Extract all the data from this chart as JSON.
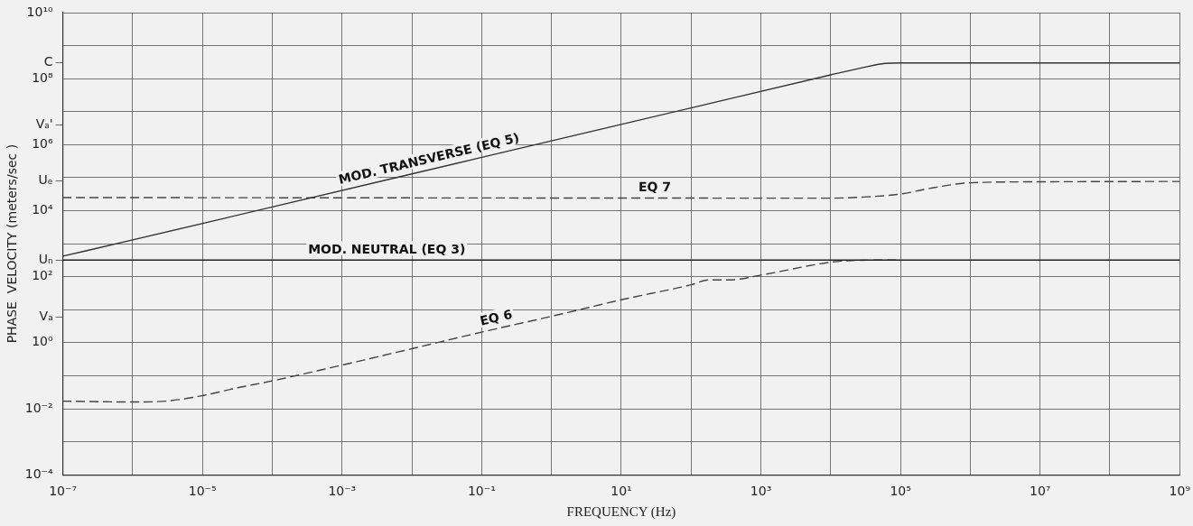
{
  "chart_data": {
    "type": "line",
    "xlabel": "FREQUENCY (Hz)",
    "ylabel": "PHASE  VELOCITY (meters/sec )",
    "log": "xy",
    "grid": true,
    "legend": false,
    "marker": "none",
    "xlim": [
      1e-07,
      1000000000.0
    ],
    "ylim": [
      0.0001,
      10000000000.0
    ],
    "xticks": [
      {
        "value": 1e-07,
        "label": "10⁻⁷"
      },
      {
        "value": 1e-06,
        "label": null
      },
      {
        "value": 1e-05,
        "label": "10⁻⁵"
      },
      {
        "value": 0.0001,
        "label": null
      },
      {
        "value": 0.001,
        "label": "10⁻³"
      },
      {
        "value": 0.01,
        "label": null
      },
      {
        "value": 0.1,
        "label": "10⁻¹"
      },
      {
        "value": 1,
        "label": null
      },
      {
        "value": 10,
        "label": "10¹"
      },
      {
        "value": 100,
        "label": null
      },
      {
        "value": 1000,
        "label": "10³"
      },
      {
        "value": 10000.0,
        "label": null
      },
      {
        "value": 100000.0,
        "label": "10⁵"
      },
      {
        "value": 1000000.0,
        "label": null
      },
      {
        "value": 10000000.0,
        "label": "10⁷"
      },
      {
        "value": 100000000.0,
        "label": null
      },
      {
        "value": 1000000000.0,
        "label": "10⁹"
      }
    ],
    "yticks": [
      {
        "value": 0.0001,
        "label": "10⁻⁴"
      },
      {
        "value": 0.001,
        "label": null
      },
      {
        "value": 0.01,
        "label": "10⁻²"
      },
      {
        "value": 0.1,
        "label": null
      },
      {
        "value": 1,
        "label": "10⁰"
      },
      {
        "value": 6,
        "label": "Vₐ"
      },
      {
        "value": 10,
        "label": null
      },
      {
        "value": 100,
        "label": "10²"
      },
      {
        "value": 320,
        "label": "Uₙ"
      },
      {
        "value": 1000,
        "label": null
      },
      {
        "value": 10000.0,
        "label": "10⁴"
      },
      {
        "value": 80000.0,
        "label": "Uₑ"
      },
      {
        "value": 100000.0,
        "label": null
      },
      {
        "value": 1000000.0,
        "label": "10⁶"
      },
      {
        "value": 4000000.0,
        "label": "Vₐ'"
      },
      {
        "value": 10000000.0,
        "label": null
      },
      {
        "value": 100000000.0,
        "label": "10⁸"
      },
      {
        "value": 300000000.0,
        "label": "C"
      },
      {
        "value": 1000000000.0,
        "label": null
      },
      {
        "value": 10000000000.0,
        "label": "10¹⁰"
      }
    ],
    "series": [
      {
        "name": "MOD. TRANSVERSE (EQ 5)",
        "color": "#333333",
        "line_style": "solid",
        "x": [
          1e-07,
          1e-06,
          0.0001,
          0.01,
          1,
          100,
          10000.0,
          30000.0,
          60000.0,
          100000.0,
          1000000000.0
        ],
        "values": [
          420,
          1300,
          13000.0,
          130000.0,
          1300000.0,
          13000000.0,
          130000000.0,
          220000000.0,
          290000000.0,
          300000000.0,
          300000000.0
        ]
      },
      {
        "name": "EQ 7",
        "color": "#444444",
        "line_style": "dashed",
        "x": [
          1e-07,
          10000.0,
          30000.0,
          100000.0,
          300000.0,
          1000000.0,
          10000000.0,
          1000000000.0
        ],
        "values": [
          25000.0,
          24000.0,
          26000.0,
          32000.0,
          50000.0,
          70000.0,
          75000.0,
          77000.0
        ]
      },
      {
        "name": "MOD. NEUTRAL (EQ 3)",
        "color": "#222222",
        "line_style": "solid",
        "x": [
          1e-07,
          1000000000.0
        ],
        "values": [
          320,
          320
        ]
      },
      {
        "name": "EQ 6",
        "color": "#444444",
        "line_style": "dashed",
        "x": [
          1e-07,
          1e-06,
          3e-06,
          1e-05,
          3e-05,
          0.0001,
          0.001,
          0.01,
          0.1,
          1,
          10,
          100,
          180,
          360,
          1000,
          10000.0,
          20000.0,
          100000.0
        ],
        "values": [
          0.017,
          0.016,
          0.017,
          0.025,
          0.042,
          0.07,
          0.21,
          0.66,
          2.1,
          6.3,
          20,
          57,
          80,
          80,
          112,
          275,
          310,
          320
        ]
      }
    ]
  }
}
